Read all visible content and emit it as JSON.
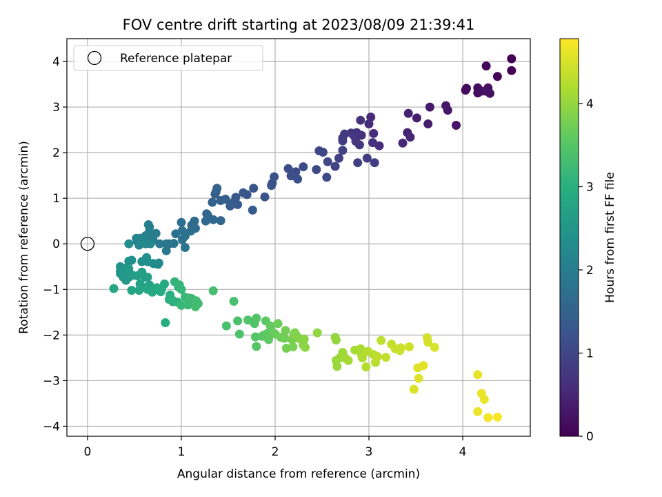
{
  "chart_data": {
    "type": "scatter",
    "title": "FOV centre drift starting at 2023/08/09 21:39:41",
    "xlabel": "Angular distance from reference (arcmin)",
    "ylabel": "Rotation from reference (arcmin)",
    "xlim": [
      -0.22,
      4.72
    ],
    "ylim": [
      -4.22,
      4.5
    ],
    "xticks": [
      0,
      1,
      2,
      3,
      4
    ],
    "yticks": [
      -4,
      -3,
      -2,
      -1,
      0,
      1,
      2,
      3,
      4
    ],
    "grid": true,
    "legend": {
      "placement": "top-left",
      "entries": [
        "Reference platepar"
      ]
    },
    "reference_point": {
      "x": 0,
      "y": 0,
      "label": "Reference platepar"
    },
    "colorbar": {
      "label": "Hours from first FF file",
      "colormap": "viridis",
      "range": [
        0,
        4.78
      ],
      "ticks": [
        0,
        1,
        2,
        3,
        4
      ]
    },
    "points": [
      [
        4.52,
        4.06,
        0.0
      ],
      [
        4.52,
        3.8,
        0.02
      ],
      [
        4.37,
        3.67,
        0.05
      ],
      [
        4.25,
        3.9,
        0.07
      ],
      [
        4.04,
        3.41,
        0.1
      ],
      [
        4.03,
        3.37,
        0.12
      ],
      [
        4.16,
        3.42,
        0.14
      ],
      [
        4.16,
        3.31,
        0.16
      ],
      [
        4.2,
        3.35,
        0.18
      ],
      [
        4.27,
        3.42,
        0.2
      ],
      [
        4.29,
        3.3,
        0.22
      ],
      [
        4.24,
        3.35,
        0.24
      ],
      [
        3.93,
        2.6,
        0.27
      ],
      [
        3.84,
        2.93,
        0.3
      ],
      [
        3.82,
        3.03,
        0.32
      ],
      [
        3.65,
        3.0,
        0.35
      ],
      [
        3.63,
        2.63,
        0.38
      ],
      [
        3.51,
        2.76,
        0.41
      ],
      [
        3.42,
        2.86,
        0.44
      ],
      [
        3.41,
        2.44,
        0.47
      ],
      [
        3.44,
        2.34,
        0.5
      ],
      [
        3.36,
        2.21,
        0.53
      ],
      [
        3.02,
        2.78,
        0.56
      ],
      [
        3.0,
        2.63,
        0.58
      ],
      [
        3.05,
        2.42,
        0.6
      ],
      [
        3.11,
        2.15,
        0.62
      ],
      [
        3.04,
        2.22,
        0.64
      ],
      [
        2.91,
        2.71,
        0.66
      ],
      [
        2.92,
        2.38,
        0.68
      ],
      [
        2.87,
        2.44,
        0.7
      ],
      [
        2.81,
        2.43,
        0.72
      ],
      [
        2.9,
        2.17,
        0.74
      ],
      [
        2.86,
        2.25,
        0.76
      ],
      [
        2.84,
        2.37,
        0.78
      ],
      [
        2.74,
        2.41,
        0.8
      ],
      [
        2.72,
        2.32,
        0.82
      ],
      [
        2.72,
        2.26,
        0.84
      ],
      [
        3.06,
        1.78,
        0.86
      ],
      [
        2.98,
        1.88,
        0.88
      ],
      [
        2.88,
        1.78,
        0.9
      ],
      [
        2.72,
        2.05,
        0.92
      ],
      [
        2.68,
        1.88,
        0.94
      ],
      [
        2.64,
        1.7,
        0.96
      ],
      [
        2.51,
        2.01,
        0.98
      ],
      [
        2.47,
        2.04,
        1.0
      ],
      [
        2.56,
        1.8,
        1.02
      ],
      [
        2.44,
        1.63,
        1.04
      ],
      [
        2.55,
        1.46,
        1.06
      ],
      [
        2.3,
        1.69,
        1.08
      ],
      [
        2.22,
        1.58,
        1.1
      ],
      [
        2.14,
        1.65,
        1.12
      ],
      [
        2.17,
        1.49,
        1.14
      ],
      [
        2.24,
        1.42,
        1.16
      ],
      [
        1.99,
        1.47,
        1.18
      ],
      [
        1.97,
        1.33,
        1.2
      ],
      [
        1.96,
        1.28,
        1.22
      ],
      [
        1.89,
        1.03,
        1.24
      ],
      [
        1.77,
        1.22,
        1.26
      ],
      [
        1.7,
        1.08,
        1.28
      ],
      [
        1.66,
        1.12,
        1.3
      ],
      [
        1.58,
        1.02,
        1.32
      ],
      [
        1.6,
        0.86,
        1.34
      ],
      [
        1.55,
        0.9,
        1.36
      ],
      [
        1.76,
        0.74,
        1.38
      ],
      [
        1.52,
        0.83,
        1.4
      ],
      [
        1.42,
        0.95,
        1.42
      ],
      [
        1.47,
        0.98,
        1.44
      ],
      [
        1.37,
        1.14,
        1.46
      ],
      [
        1.36,
        1.09,
        1.48
      ],
      [
        1.38,
        1.22,
        1.5
      ],
      [
        1.33,
        0.91,
        1.52
      ],
      [
        1.27,
        0.66,
        1.54
      ],
      [
        1.42,
        0.51,
        1.56
      ],
      [
        1.28,
        0.63,
        1.58
      ],
      [
        1.26,
        0.5,
        1.6
      ],
      [
        1.34,
        0.53,
        1.62
      ],
      [
        1.14,
        0.5,
        1.64
      ],
      [
        1.11,
        0.41,
        1.66
      ],
      [
        1.15,
        0.34,
        1.68
      ],
      [
        1.1,
        0.28,
        1.7
      ],
      [
        1.0,
        0.47,
        1.72
      ],
      [
        1.01,
        0.29,
        1.74
      ],
      [
        0.94,
        0.22,
        1.76
      ],
      [
        1.04,
        0.17,
        1.78
      ],
      [
        1.01,
        0.09,
        1.8
      ],
      [
        1.04,
        -0.08,
        1.82
      ],
      [
        0.92,
        0.01,
        1.84
      ],
      [
        0.87,
        0.0,
        1.86
      ],
      [
        0.84,
        0.0,
        1.88
      ],
      [
        0.84,
        -0.15,
        1.9
      ],
      [
        0.77,
        0.0,
        1.92
      ],
      [
        0.7,
        0.08,
        1.94
      ],
      [
        0.7,
        0.2,
        1.96
      ],
      [
        0.73,
        0.23,
        1.98
      ],
      [
        0.66,
        0.27,
        2.0
      ],
      [
        0.66,
        0.37,
        2.02
      ],
      [
        0.65,
        0.42,
        2.04
      ],
      [
        0.62,
        0.18,
        2.06
      ],
      [
        0.62,
        0.08,
        2.08
      ],
      [
        0.56,
        0.03,
        2.1
      ],
      [
        0.56,
        0.12,
        2.12
      ],
      [
        0.52,
        0.12,
        2.14
      ],
      [
        0.53,
        0.05,
        2.16
      ],
      [
        0.55,
        -0.03,
        2.18
      ],
      [
        0.62,
        0.0,
        2.2
      ],
      [
        0.67,
        0.0,
        2.22
      ],
      [
        0.76,
        -0.42,
        2.24
      ],
      [
        0.7,
        -0.43,
        2.26
      ],
      [
        0.75,
        -0.45,
        2.28
      ],
      [
        0.44,
        0.0,
        2.3
      ],
      [
        0.58,
        -0.39,
        2.32
      ],
      [
        0.61,
        -0.36,
        2.34
      ],
      [
        0.64,
        -0.39,
        2.36
      ],
      [
        0.63,
        -0.3,
        2.38
      ],
      [
        0.47,
        -0.36,
        2.4
      ],
      [
        0.44,
        -0.38,
        2.42
      ],
      [
        0.43,
        -0.5,
        2.44
      ],
      [
        0.35,
        -0.5,
        2.46
      ],
      [
        0.35,
        -0.6,
        2.48
      ],
      [
        0.35,
        -0.65,
        2.5
      ],
      [
        0.38,
        -0.73,
        2.52
      ],
      [
        0.41,
        -0.8,
        2.54
      ],
      [
        0.44,
        -0.73,
        2.56
      ],
      [
        0.44,
        -0.63,
        2.58
      ],
      [
        0.44,
        -0.55,
        2.6
      ],
      [
        0.48,
        -0.69,
        2.62
      ],
      [
        0.53,
        -0.7,
        2.64
      ],
      [
        0.58,
        -0.62,
        2.66
      ],
      [
        0.61,
        -0.73,
        2.68
      ],
      [
        0.64,
        -0.73,
        2.7
      ],
      [
        0.56,
        -0.88,
        2.72
      ],
      [
        0.59,
        -0.95,
        2.74
      ],
      [
        0.66,
        -0.9,
        2.76
      ],
      [
        0.55,
        -1.02,
        2.78
      ],
      [
        0.47,
        -1.02,
        2.8
      ],
      [
        0.28,
        -0.98,
        2.82
      ],
      [
        0.64,
        -1.0,
        2.84
      ],
      [
        0.69,
        -1.06,
        2.86
      ],
      [
        0.74,
        -0.96,
        2.88
      ],
      [
        0.82,
        -0.88,
        2.9
      ],
      [
        0.79,
        -0.99,
        2.92
      ],
      [
        0.78,
        -1.05,
        2.94
      ],
      [
        0.83,
        -1.73,
        2.96
      ],
      [
        0.88,
        -1.12,
        2.98
      ],
      [
        0.87,
        -1.22,
        3.0
      ],
      [
        0.91,
        -1.24,
        3.02
      ],
      [
        0.91,
        -1.27,
        3.04
      ],
      [
        0.96,
        -1.28,
        3.06
      ],
      [
        0.97,
        -0.95,
        3.08
      ],
      [
        0.93,
        -0.83,
        3.1
      ],
      [
        0.98,
        -0.9,
        3.12
      ],
      [
        1.0,
        -1.0,
        3.14
      ],
      [
        1.04,
        -1.17,
        3.16
      ],
      [
        1.0,
        -1.35,
        3.18
      ],
      [
        1.07,
        -1.34,
        3.2
      ],
      [
        1.09,
        -1.19,
        3.22
      ],
      [
        1.11,
        -1.2,
        3.24
      ],
      [
        1.16,
        -1.25,
        3.26
      ],
      [
        1.18,
        -1.31,
        3.28
      ],
      [
        1.15,
        -1.38,
        3.3
      ],
      [
        1.34,
        -1.03,
        3.32
      ],
      [
        1.56,
        -1.26,
        3.34
      ],
      [
        1.48,
        -1.8,
        3.36
      ],
      [
        1.6,
        -1.69,
        3.38
      ],
      [
        1.62,
        -1.98,
        3.4
      ],
      [
        1.71,
        -1.67,
        3.42
      ],
      [
        1.78,
        -1.75,
        3.44
      ],
      [
        1.8,
        -1.63,
        3.46
      ],
      [
        1.79,
        -2.04,
        3.48
      ],
      [
        1.8,
        -2.25,
        3.5
      ],
      [
        1.86,
        -2.03,
        3.52
      ],
      [
        1.88,
        -2.0,
        3.54
      ],
      [
        1.9,
        -1.69,
        3.56
      ],
      [
        1.92,
        -1.96,
        3.58
      ],
      [
        1.93,
        -2.1,
        3.6
      ],
      [
        1.95,
        -1.8,
        3.62
      ],
      [
        1.98,
        -1.95,
        3.64
      ],
      [
        2.0,
        -1.98,
        3.66
      ],
      [
        2.03,
        -1.75,
        3.68
      ],
      [
        2.06,
        -2.05,
        3.7
      ],
      [
        2.1,
        -2.07,
        3.72
      ],
      [
        2.11,
        -1.9,
        3.74
      ],
      [
        2.12,
        -2.29,
        3.76
      ],
      [
        2.18,
        -2.1,
        3.78
      ],
      [
        2.19,
        -2.26,
        3.8
      ],
      [
        2.2,
        -1.98,
        3.82
      ],
      [
        2.21,
        -1.95,
        3.84
      ],
      [
        2.23,
        -2.02,
        3.86
      ],
      [
        2.26,
        -2.08,
        3.88
      ],
      [
        2.3,
        -2.22,
        3.9
      ],
      [
        2.31,
        -2.09,
        3.92
      ],
      [
        2.32,
        -2.27,
        3.94
      ],
      [
        2.45,
        -1.95,
        3.96
      ],
      [
        2.64,
        -2.05,
        3.98
      ],
      [
        2.65,
        -2.11,
        4.0
      ],
      [
        2.65,
        -2.56,
        4.02
      ],
      [
        2.66,
        -2.69,
        4.04
      ],
      [
        2.69,
        -2.5,
        4.06
      ],
      [
        2.72,
        -2.38,
        4.08
      ],
      [
        2.75,
        -2.51,
        4.1
      ],
      [
        2.78,
        -2.56,
        4.12
      ],
      [
        2.85,
        -2.33,
        4.14
      ],
      [
        2.91,
        -2.3,
        4.16
      ],
      [
        2.92,
        -2.43,
        4.18
      ],
      [
        2.93,
        -2.5,
        4.2
      ],
      [
        2.97,
        -2.7,
        4.22
      ],
      [
        2.99,
        -2.36,
        4.24
      ],
      [
        3.05,
        -2.43,
        4.26
      ],
      [
        3.07,
        -2.6,
        4.28
      ],
      [
        3.09,
        -2.47,
        4.3
      ],
      [
        3.13,
        -2.12,
        4.32
      ],
      [
        3.18,
        -2.49,
        4.34
      ],
      [
        3.24,
        -2.2,
        4.36
      ],
      [
        3.28,
        -2.3,
        4.38
      ],
      [
        3.33,
        -2.34,
        4.4
      ],
      [
        3.34,
        -2.28,
        4.42
      ],
      [
        3.43,
        -2.26,
        4.44
      ],
      [
        3.62,
        -2.06,
        4.46
      ],
      [
        3.63,
        -2.16,
        4.48
      ],
      [
        3.7,
        -2.27,
        4.5
      ],
      [
        3.48,
        -3.19,
        4.52
      ],
      [
        3.52,
        -2.72,
        4.54
      ],
      [
        3.53,
        -2.95,
        4.56
      ],
      [
        3.58,
        -2.67,
        4.58
      ],
      [
        4.16,
        -2.87,
        4.6
      ],
      [
        4.2,
        -3.28,
        4.62
      ],
      [
        4.23,
        -3.41,
        4.64
      ],
      [
        4.16,
        -3.68,
        4.66
      ],
      [
        4.27,
        -3.81,
        4.7
      ],
      [
        4.37,
        -3.8,
        4.75
      ]
    ]
  }
}
